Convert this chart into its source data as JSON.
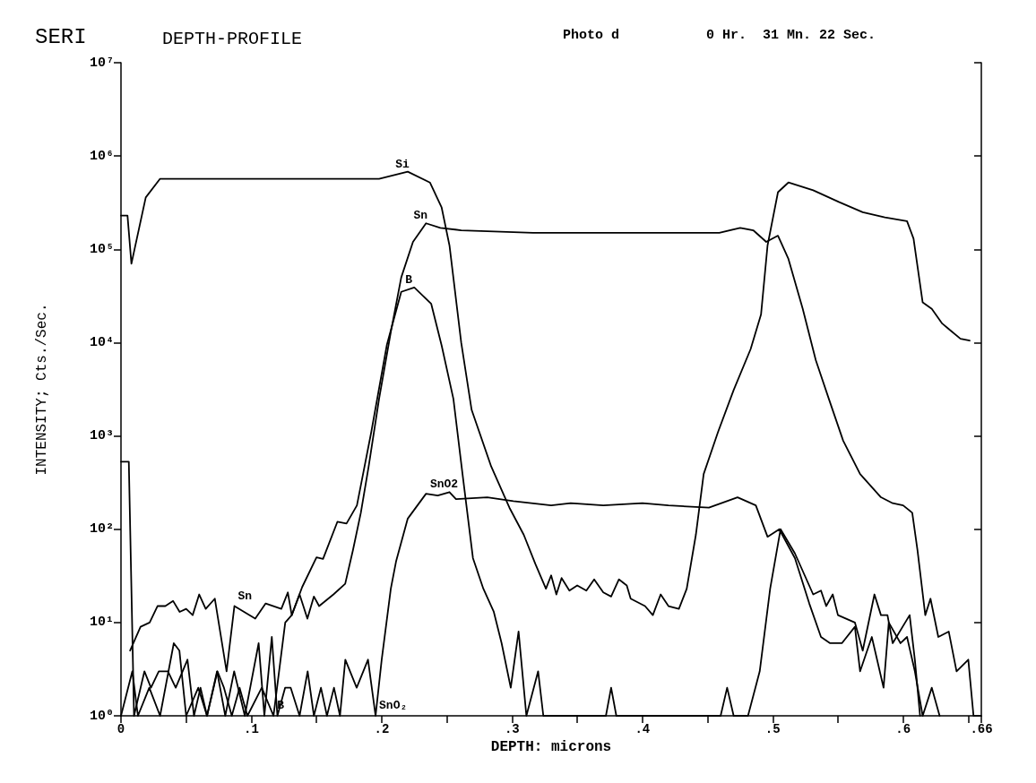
{
  "chart_data": {
    "type": "line",
    "title": "SERI",
    "subtitle": "DEPTH-PROFILE",
    "xlabel": "DEPTH: microns",
    "ylabel": "INTENSITY; Cts./Sec.",
    "annotations": [
      "Photo d",
      "0 Hr.  31 Mn. 22 Sec.",
      {
        "text": "Sn",
        "x": 0.087,
        "y": 15
      },
      {
        "text": "B",
        "x": 0.117,
        "y": 1
      },
      {
        "text": "SnO₂",
        "x": 0.1953,
        "y": 1
      }
    ],
    "log": "y",
    "grid": false,
    "legend": false,
    "marker": "none",
    "line_style": "solid",
    "xlim": [
      0,
      0.66
    ],
    "xticks": [
      {
        "value": 0,
        "label": "0"
      },
      {
        "value": 0.05,
        "label": null
      },
      {
        "value": 0.1,
        "label": ".1"
      },
      {
        "value": 0.15,
        "label": null
      },
      {
        "value": 0.2,
        "label": ".2"
      },
      {
        "value": 0.25,
        "label": null
      },
      {
        "value": 0.3,
        "label": ".3"
      },
      {
        "value": 0.35,
        "label": null
      },
      {
        "value": 0.4,
        "label": ".4"
      },
      {
        "value": 0.45,
        "label": null
      },
      {
        "value": 0.5,
        "label": ".5"
      },
      {
        "value": 0.55,
        "label": null
      },
      {
        "value": 0.6,
        "label": ".6"
      },
      {
        "value": 0.65,
        "label": null
      },
      {
        "value": 0.66,
        "label": ".66"
      }
    ],
    "ylim": [
      1,
      10000000
    ],
    "yticks": [
      {
        "value": 1,
        "label": "10⁰"
      },
      {
        "value": 10,
        "label": "10¹"
      },
      {
        "value": 100,
        "label": "10²"
      },
      {
        "value": 1000,
        "label": "10³"
      },
      {
        "value": 10000,
        "label": "10⁴"
      },
      {
        "value": 100000,
        "label": "10⁵"
      },
      {
        "value": 1000000,
        "label": "10⁶"
      },
      {
        "value": 10000000,
        "label": "10⁷"
      }
    ],
    "series": [
      {
        "name": "Si",
        "color": "#000000",
        "x": [
          0,
          0.005,
          0.008,
          0.019,
          0.03,
          0.1,
          0.198,
          0.22,
          0.237,
          0.246,
          0.252,
          0.261,
          0.269,
          0.284,
          0.298,
          0.309,
          0.318,
          0.326,
          0.33,
          0.334,
          0.338,
          0.344,
          0.35,
          0.357,
          0.363,
          0.37,
          0.376,
          0.382,
          0.388,
          0.391,
          0.402,
          0.408,
          0.414,
          0.42,
          0.428,
          0.434,
          0.441,
          0.447,
          0.458,
          0.47,
          0.483,
          0.491,
          0.496,
          0.504,
          0.512,
          0.531,
          0.551,
          0.569,
          0.586,
          0.603,
          0.608,
          0.615,
          0.622,
          0.63,
          0.635,
          0.644,
          0.651
        ],
        "values": [
          230000,
          230000,
          70000,
          360000,
          570000,
          570000,
          570000,
          680000,
          520000,
          280000,
          110000,
          10000,
          1900,
          470,
          170,
          87,
          42,
          23,
          32,
          20,
          30,
          22,
          25,
          22,
          29,
          21,
          19,
          29,
          25,
          18,
          15,
          12,
          20,
          15,
          14,
          23,
          87,
          390,
          1100,
          3100,
          8500,
          20000,
          110000,
          410000,
          520000,
          430000,
          320000,
          250000,
          220000,
          200000,
          130000,
          27000,
          23000,
          16000,
          14000,
          11000,
          10500
        ]
      },
      {
        "name": "Sn",
        "color": "#000000",
        "x": [
          0.007,
          0.015,
          0.022,
          0.028,
          0.034,
          0.04,
          0.045,
          0.05,
          0.055,
          0.06,
          0.065,
          0.072,
          0.081,
          0.087,
          0.103,
          0.111,
          0.123,
          0.128,
          0.131,
          0.137,
          0.143,
          0.148,
          0.152,
          0.163,
          0.172,
          0.178,
          0.184,
          0.19,
          0.198,
          0.207,
          0.215,
          0.224,
          0.234,
          0.245,
          0.261,
          0.316,
          0.373,
          0.443,
          0.459,
          0.475,
          0.485,
          0.495,
          0.504,
          0.512,
          0.523,
          0.533,
          0.543,
          0.554,
          0.567,
          0.583,
          0.592,
          0.6,
          0.607,
          0.611,
          0.617,
          0.621,
          0.627,
          0.635,
          0.641,
          0.65,
          0.654
        ],
        "values": [
          5,
          9,
          10,
          15,
          15,
          17,
          13,
          14,
          12,
          20,
          14,
          18,
          3,
          15,
          11,
          16,
          14,
          21,
          12,
          20,
          11,
          19,
          15,
          20,
          26,
          60,
          150,
          470,
          2500,
          13000,
          50000,
          120000,
          190000,
          170000,
          160000,
          150000,
          150000,
          150000,
          150000,
          170000,
          160000,
          120000,
          140000,
          79000,
          23000,
          6500,
          2500,
          890,
          390,
          220,
          190,
          180,
          150,
          60,
          12,
          18,
          7,
          8,
          3,
          4,
          1
        ]
      },
      {
        "name": "B",
        "color": "#000000",
        "x": [
          0,
          0.006,
          0.01,
          0.018,
          0.023,
          0.029,
          0.036,
          0.042,
          0.051,
          0.056,
          0.061,
          0.066,
          0.074,
          0.079,
          0.085,
          0.091,
          0.097,
          0.108,
          0.117,
          0.126,
          0.131,
          0.139,
          0.15,
          0.155,
          0.166,
          0.173,
          0.181,
          0.192,
          0.204,
          0.215,
          0.225,
          0.238,
          0.246,
          0.255,
          0.262,
          0.27,
          0.278,
          0.286,
          0.292,
          0.299,
          0.305,
          0.311,
          0.32,
          0.324,
          0.372,
          0.376,
          0.38,
          0.46,
          0.465,
          0.47,
          0.481,
          0.49,
          0.498,
          0.506,
          0.517,
          0.531,
          0.537,
          0.541,
          0.546,
          0.55,
          0.563,
          0.569,
          0.578,
          0.583,
          0.588,
          0.592,
          0.605,
          0.609,
          0.613
        ],
        "values": [
          530,
          530,
          1,
          3,
          2,
          3,
          3,
          2,
          4,
          1,
          2,
          1,
          3,
          2,
          1,
          2,
          1,
          2,
          1,
          10,
          12,
          24,
          50,
          48,
          120,
          115,
          180,
          1100,
          9500,
          35000,
          39000,
          26000,
          9300,
          2500,
          390,
          49,
          23,
          13,
          6,
          2,
          8,
          1,
          3,
          1,
          1,
          2,
          1,
          1,
          2,
          1,
          1,
          3,
          23,
          100,
          55,
          20,
          22,
          15,
          20,
          12,
          10,
          5,
          20,
          12,
          12,
          6,
          12,
          4,
          1
        ]
      },
      {
        "name": "SnO2",
        "color": "#000000",
        "x": [
          0,
          0.0087,
          0.013,
          0.0217,
          0.03,
          0.0405,
          0.0448,
          0.05,
          0.0593,
          0.066,
          0.0737,
          0.08,
          0.0868,
          0.095,
          0.1056,
          0.11,
          0.1157,
          0.12,
          0.1259,
          0.1302,
          0.137,
          0.1432,
          0.148,
          0.1534,
          0.158,
          0.1634,
          0.168,
          0.1721,
          0.1808,
          0.1895,
          0.1953,
          0.2,
          0.207,
          0.211,
          0.22,
          0.234,
          0.243,
          0.252,
          0.257,
          0.281,
          0.301,
          0.33,
          0.345,
          0.37,
          0.4,
          0.42,
          0.451,
          0.473,
          0.487,
          0.496,
          0.505,
          0.517,
          0.528,
          0.537,
          0.544,
          0.553,
          0.563,
          0.567,
          0.576,
          0.585,
          0.589,
          0.598,
          0.603,
          0.609,
          0.615,
          0.622,
          0.628
        ],
        "values": [
          1,
          3,
          1,
          2,
          1,
          6,
          5,
          1,
          2,
          1,
          3,
          1,
          3,
          1,
          6,
          1,
          7,
          1,
          2,
          2,
          1,
          3,
          1,
          2,
          1,
          2,
          1,
          4,
          2,
          4,
          1,
          4,
          23,
          45,
          130,
          240,
          230,
          250,
          210,
          220,
          200,
          180,
          190,
          180,
          190,
          180,
          170,
          220,
          180,
          83,
          100,
          49,
          16,
          7,
          6,
          6,
          9,
          3,
          7,
          2,
          10,
          6,
          7,
          3,
          1,
          2,
          1
        ]
      }
    ]
  }
}
